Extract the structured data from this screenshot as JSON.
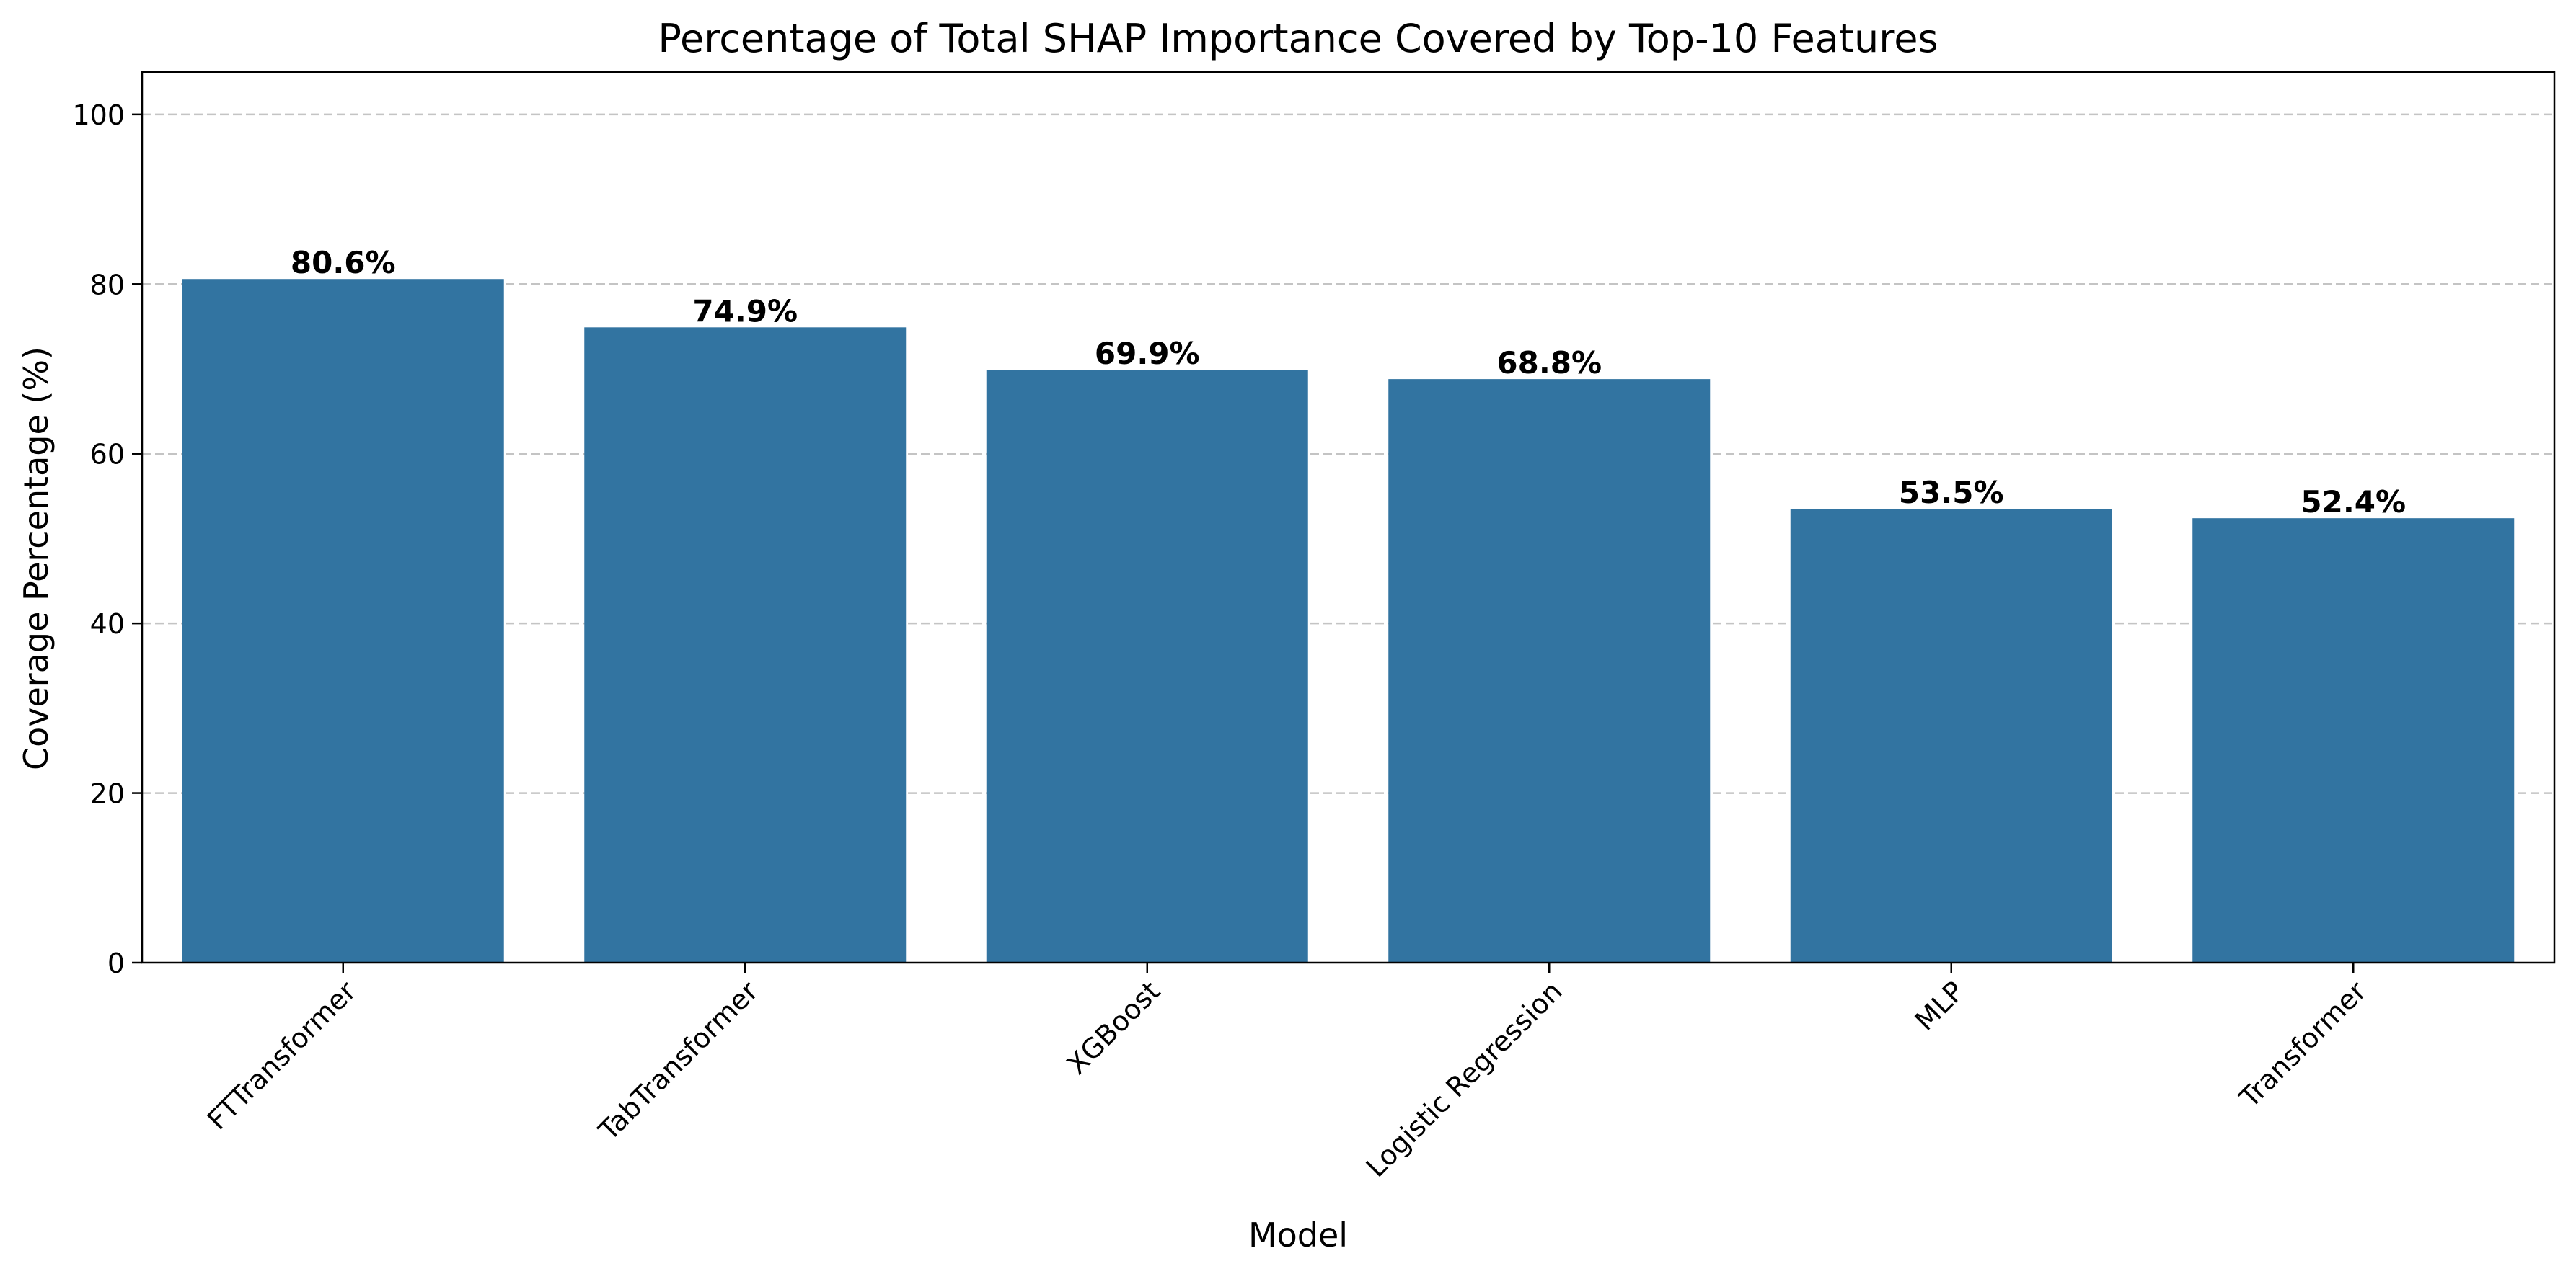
{
  "chart_data": {
    "type": "bar",
    "title": "Percentage of Total SHAP Importance Covered by Top-10 Features",
    "xlabel": "Model",
    "ylabel": "Coverage Percentage (%)",
    "categories": [
      "FTTransformer",
      "TabTransformer",
      "XGBoost",
      "Logistic Regression",
      "MLP",
      "Transformer"
    ],
    "values": [
      80.6,
      74.9,
      69.9,
      68.8,
      53.5,
      52.4
    ],
    "value_labels": [
      "80.6%",
      "74.9%",
      "69.9%",
      "68.8%",
      "53.5%",
      "52.4%"
    ],
    "ylim": [
      0,
      105
    ],
    "yticks": [
      0,
      20,
      40,
      60,
      80,
      100
    ],
    "ytick_labels": [
      "0",
      "20",
      "40",
      "60",
      "80",
      "100"
    ],
    "grid": "y-dashed",
    "legend": "none",
    "colors": {
      "bar": "#3274a1",
      "grid": "#c4c4c4",
      "axis": "#000000",
      "text": "#000000"
    }
  }
}
